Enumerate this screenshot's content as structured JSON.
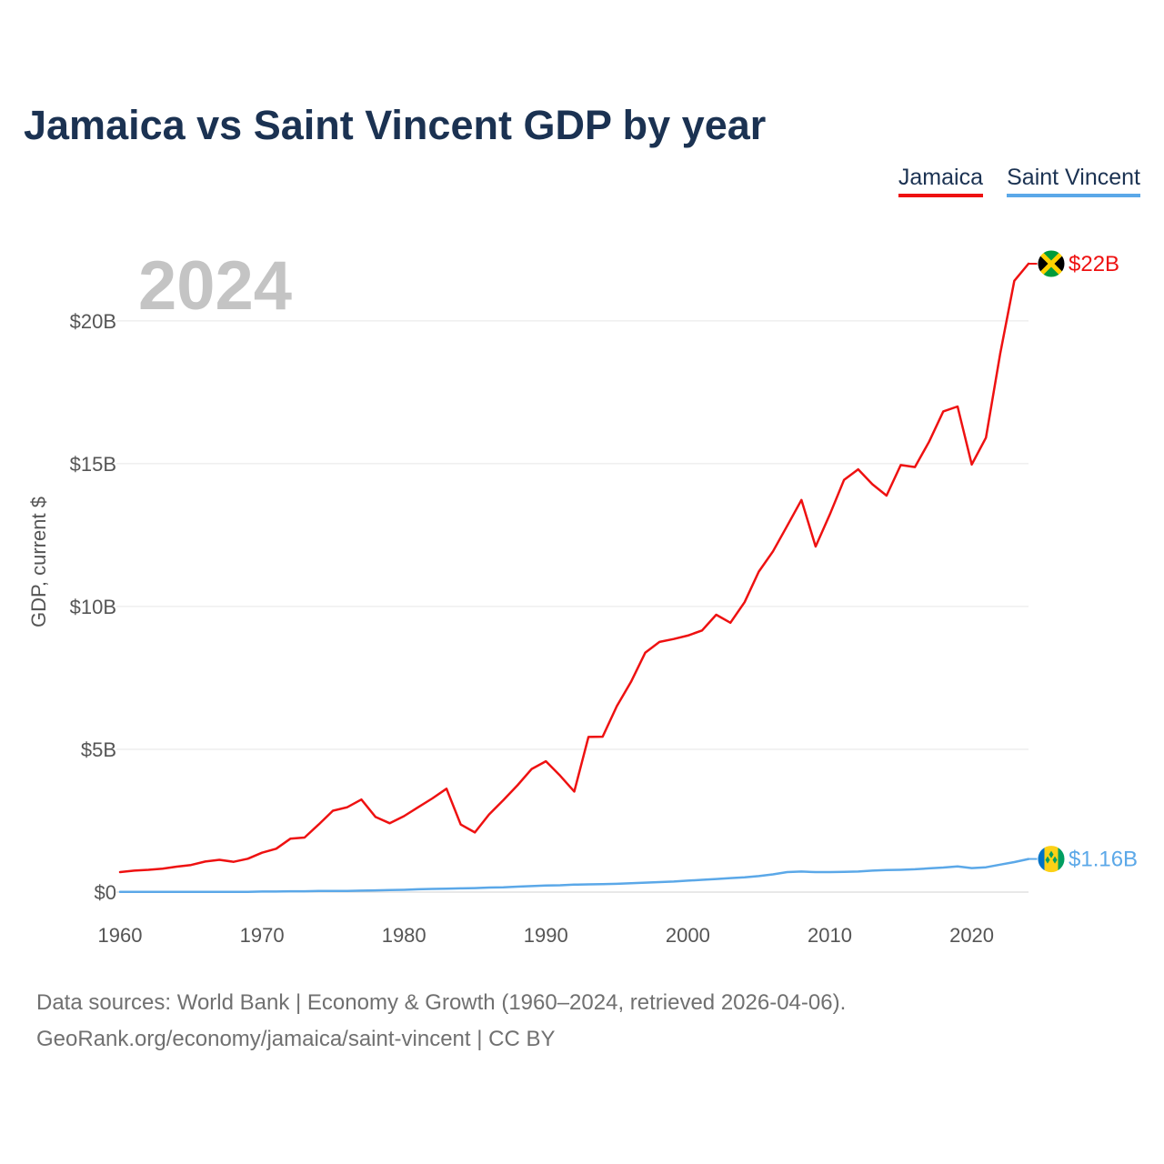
{
  "title": "Jamaica vs Saint Vincent GDP by year",
  "legend": [
    {
      "label": "Jamaica",
      "color": "#ee1111"
    },
    {
      "label": "Saint Vincent",
      "color": "#5ba8e8"
    }
  ],
  "footer": {
    "line1": "Data sources: World Bank | Economy & Growth (1960–2024, retrieved 2026-04-06).",
    "line2": "GeoRank.org/economy/jamaica/saint-vincent | CC BY"
  },
  "chart_data": {
    "type": "line",
    "title": "Jamaica vs Saint Vincent GDP by year",
    "year_label": "2024",
    "xlabel": "",
    "ylabel": "GDP, current $",
    "xlim": [
      1960,
      2024
    ],
    "ylim": [
      0,
      22
    ],
    "x_ticks": [
      {
        "value": 1960,
        "label": "1960"
      },
      {
        "value": 1970,
        "label": "1970"
      },
      {
        "value": 1980,
        "label": "1980"
      },
      {
        "value": 1990,
        "label": "1990"
      },
      {
        "value": 2000,
        "label": "2000"
      },
      {
        "value": 2010,
        "label": "2010"
      },
      {
        "value": 2020,
        "label": "2020"
      }
    ],
    "y_ticks": [
      {
        "value": 0,
        "label": "$0"
      },
      {
        "value": 5,
        "label": "$5B"
      },
      {
        "value": 10,
        "label": "$10B"
      },
      {
        "value": 15,
        "label": "$15B"
      },
      {
        "value": 20,
        "label": "$20B"
      }
    ],
    "units": "billions of current US$",
    "x": [
      1960,
      1961,
      1962,
      1963,
      1964,
      1965,
      1966,
      1967,
      1968,
      1969,
      1970,
      1971,
      1972,
      1973,
      1974,
      1975,
      1976,
      1977,
      1978,
      1979,
      1980,
      1981,
      1982,
      1983,
      1984,
      1985,
      1986,
      1987,
      1988,
      1989,
      1990,
      1991,
      1992,
      1993,
      1994,
      1995,
      1996,
      1997,
      1998,
      1999,
      2000,
      2001,
      2002,
      2003,
      2004,
      2005,
      2006,
      2007,
      2008,
      2009,
      2010,
      2011,
      2012,
      2013,
      2014,
      2015,
      2016,
      2017,
      2018,
      2019,
      2020,
      2021,
      2022,
      2023,
      2024
    ],
    "series": [
      {
        "name": "Jamaica",
        "color": "#ee1111",
        "end_label": "$22B",
        "values": [
          0.7,
          0.75,
          0.78,
          0.82,
          0.89,
          0.95,
          1.07,
          1.13,
          1.06,
          1.17,
          1.38,
          1.52,
          1.87,
          1.91,
          2.37,
          2.85,
          2.97,
          3.24,
          2.63,
          2.41,
          2.66,
          2.97,
          3.28,
          3.62,
          2.37,
          2.09,
          2.72,
          3.22,
          3.74,
          4.31,
          4.58,
          4.08,
          3.52,
          5.43,
          5.44,
          6.51,
          7.36,
          8.38,
          8.76,
          8.86,
          8.98,
          9.16,
          9.71,
          9.43,
          10.15,
          11.22,
          11.93,
          12.82,
          13.73,
          12.1,
          13.22,
          14.43,
          14.8,
          14.28,
          13.88,
          14.95,
          14.88,
          15.77,
          16.83,
          17.0,
          14.97,
          15.91,
          18.84,
          21.4,
          22.0
        ]
      },
      {
        "name": "Saint Vincent",
        "color": "#5ba8e8",
        "end_label": "$1.16B",
        "values": [
          0.01,
          0.01,
          0.01,
          0.01,
          0.01,
          0.01,
          0.01,
          0.01,
          0.01,
          0.01,
          0.02,
          0.02,
          0.03,
          0.03,
          0.04,
          0.04,
          0.04,
          0.05,
          0.06,
          0.07,
          0.08,
          0.1,
          0.11,
          0.12,
          0.13,
          0.14,
          0.16,
          0.17,
          0.19,
          0.21,
          0.23,
          0.24,
          0.26,
          0.27,
          0.28,
          0.29,
          0.31,
          0.33,
          0.35,
          0.37,
          0.4,
          0.43,
          0.46,
          0.49,
          0.52,
          0.56,
          0.62,
          0.7,
          0.72,
          0.7,
          0.7,
          0.71,
          0.72,
          0.75,
          0.77,
          0.78,
          0.8,
          0.83,
          0.86,
          0.9,
          0.84,
          0.87,
          0.96,
          1.05,
          1.16
        ]
      }
    ]
  }
}
